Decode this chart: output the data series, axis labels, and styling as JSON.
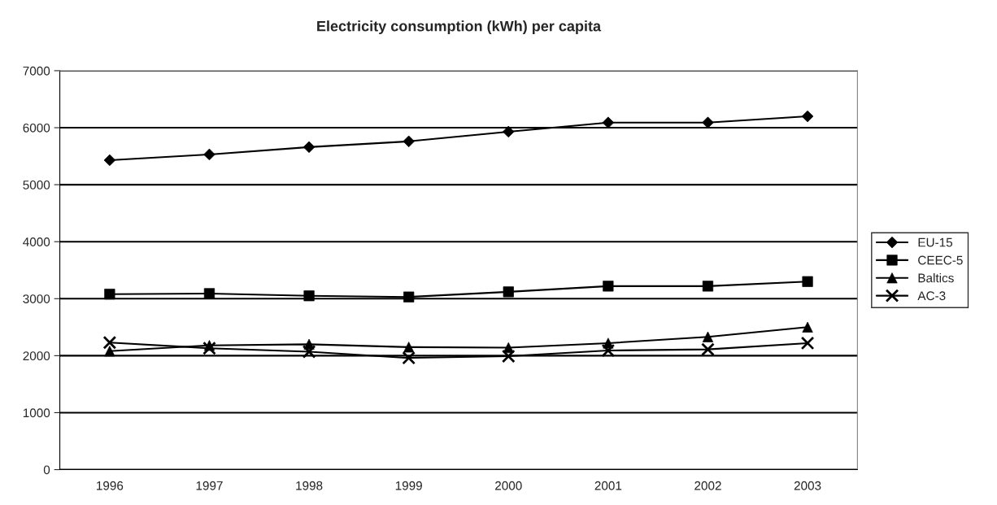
{
  "chart_data": {
    "type": "line",
    "title": "Electricity consumption (kWh) per capita",
    "categories": [
      "1996",
      "1997",
      "1998",
      "1999",
      "2000",
      "2001",
      "2002",
      "2003"
    ],
    "series": [
      {
        "name": "EU-15",
        "color": "#000000",
        "marker": "diamond",
        "values": [
          5430,
          5530,
          5660,
          5760,
          5930,
          6090,
          6090,
          6200
        ]
      },
      {
        "name": "CEEC-5",
        "color": "#000000",
        "marker": "square",
        "values": [
          3080,
          3090,
          3050,
          3030,
          3120,
          3220,
          3220,
          3300
        ]
      },
      {
        "name": "Baltics",
        "color": "#000000",
        "marker": "triangle",
        "values": [
          2080,
          2180,
          2200,
          2150,
          2140,
          2220,
          2330,
          2500
        ]
      },
      {
        "name": "AC-3",
        "color": "#000000",
        "marker": "cross",
        "values": [
          2230,
          2130,
          2070,
          1960,
          1990,
          2090,
          2110,
          2220
        ]
      }
    ],
    "ylim": [
      0,
      7000
    ],
    "yticks": [
      0,
      1000,
      2000,
      3000,
      4000,
      5000,
      6000,
      7000
    ],
    "grid": "y",
    "legend": "right"
  }
}
